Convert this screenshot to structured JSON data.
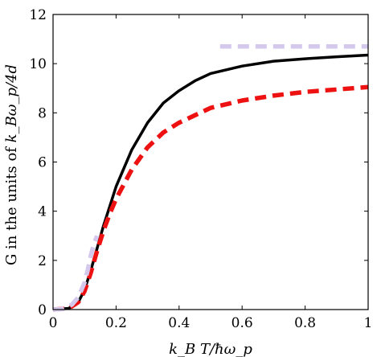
{
  "chart_data": {
    "type": "line",
    "xlabel": "k_B T/ħω_p",
    "ylabel_prefix": "G in the units of ",
    "ylabel_math": "k_Bω_p/4d",
    "xlim": [
      0,
      1
    ],
    "ylim": [
      0,
      12
    ],
    "x_ticks": [
      0,
      0.2,
      0.4,
      0.6,
      0.8,
      1
    ],
    "x_tick_labels": [
      "0",
      "0.2",
      "0.4",
      "0.6",
      "0.8",
      "1"
    ],
    "y_ticks": [
      0,
      2,
      4,
      6,
      8,
      10,
      12
    ],
    "y_tick_labels": [
      "0",
      "2",
      "4",
      "6",
      "8",
      "10",
      "12"
    ],
    "grid": false,
    "legend": "none",
    "series": [
      {
        "style": "solid",
        "color": "#000000",
        "x": [
          0,
          0.05,
          0.08,
          0.1,
          0.12,
          0.14,
          0.16,
          0.18,
          0.2,
          0.25,
          0.3,
          0.35,
          0.4,
          0.45,
          0.5,
          0.6,
          0.7,
          0.8,
          0.9,
          1.0
        ],
        "y": [
          0,
          0.05,
          0.3,
          0.8,
          1.6,
          2.5,
          3.4,
          4.2,
          5.0,
          6.5,
          7.6,
          8.4,
          8.9,
          9.3,
          9.6,
          9.9,
          10.1,
          10.2,
          10.28,
          10.35
        ]
      },
      {
        "style": "dashed",
        "color": "#ee1111",
        "x": [
          0,
          0.05,
          0.08,
          0.1,
          0.12,
          0.14,
          0.16,
          0.18,
          0.2,
          0.25,
          0.3,
          0.35,
          0.4,
          0.45,
          0.5,
          0.6,
          0.7,
          0.8,
          0.9,
          1.0
        ],
        "y": [
          0,
          0.05,
          0.3,
          0.75,
          1.5,
          2.4,
          3.2,
          3.9,
          4.5,
          5.7,
          6.6,
          7.2,
          7.6,
          7.9,
          8.2,
          8.5,
          8.7,
          8.85,
          8.95,
          9.05
        ]
      },
      {
        "style": "dashed",
        "color": "#d4c8ec",
        "x": [
          0.53,
          1.0
        ],
        "y": [
          10.7,
          10.7
        ]
      },
      {
        "style": "dashed",
        "color": "#d4c8ec",
        "x": [
          0,
          0.03,
          0.06,
          0.08,
          0.1,
          0.11,
          0.12,
          0.13,
          0.14
        ],
        "y": [
          0,
          0.02,
          0.2,
          0.5,
          1.1,
          1.6,
          2.2,
          2.7,
          3.0
        ]
      }
    ]
  }
}
